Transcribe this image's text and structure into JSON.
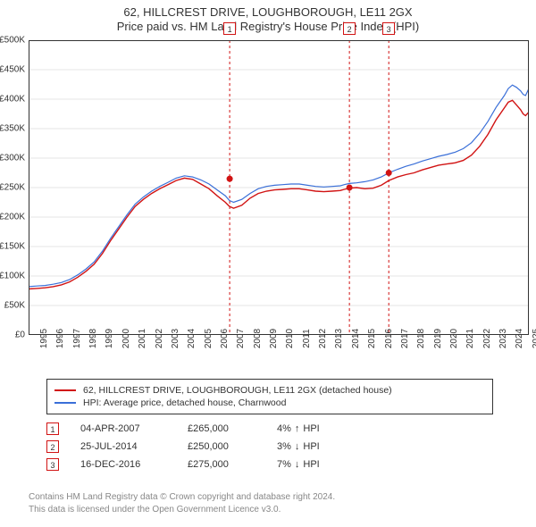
{
  "title_line1": "62, HILLCREST DRIVE, LOUGHBOROUGH, LE11 2GX",
  "title_line2": "Price paid vs. HM Land Registry's House Price Index (HPI)",
  "chart": {
    "type": "line",
    "background_color": "#ffffff",
    "grid_color": "#e6e6e6",
    "border_color": "#333333",
    "xlim": [
      1995,
      2025.5
    ],
    "ylim": [
      0,
      500000
    ],
    "ytick_step": 50000,
    "y_tick_labels": [
      "£0",
      "£50K",
      "£100K",
      "£150K",
      "£200K",
      "£250K",
      "£300K",
      "£350K",
      "£400K",
      "£450K",
      "£500K"
    ],
    "x_tick_labels": [
      "1995",
      "1996",
      "1997",
      "1998",
      "1999",
      "2000",
      "2001",
      "2002",
      "2003",
      "2004",
      "2005",
      "2006",
      "2007",
      "2008",
      "2009",
      "2010",
      "2011",
      "2012",
      "2013",
      "2014",
      "2015",
      "2016",
      "2017",
      "2018",
      "2019",
      "2020",
      "2021",
      "2022",
      "2023",
      "2024",
      "2025"
    ],
    "series": [
      {
        "name": "62, HILLCREST DRIVE, LOUGHBOROUGH, LE11 2GX (detached house)",
        "color": "#d11313",
        "line_width": 1.4,
        "data_y": [
          78000,
          79000,
          80000,
          82000,
          85000,
          90000,
          98000,
          108000,
          120000,
          138000,
          160000,
          180000,
          200000,
          218000,
          230000,
          240000,
          248000,
          255000,
          262000,
          266000,
          264000,
          256000,
          248000,
          236000,
          225000,
          218000,
          215000,
          220000,
          232000,
          240000,
          244000,
          246000,
          247000,
          248000,
          248000,
          246000,
          244000,
          243000,
          244000,
          245000,
          247000,
          249000,
          250000,
          248000,
          249000,
          254000,
          262000,
          268000,
          272000,
          275000,
          280000,
          284000,
          288000,
          290000,
          292000,
          296000,
          305000,
          320000,
          340000,
          365000,
          385000,
          395000,
          398000,
          390000,
          382000,
          375000,
          372000,
          378000
        ]
      },
      {
        "name": "HPI: Average price, detached house, Charnwood",
        "color": "#3a6fd8",
        "line_width": 1.2,
        "data_y": [
          82000,
          83000,
          84000,
          86000,
          89000,
          94000,
          102000,
          112000,
          124000,
          142000,
          164000,
          184000,
          204000,
          222000,
          234000,
          244000,
          252000,
          259000,
          266000,
          270000,
          268000,
          263000,
          256000,
          246000,
          236000,
          228000,
          225000,
          230000,
          240000,
          248000,
          252000,
          254000,
          255000,
          256000,
          256000,
          254000,
          252000,
          251000,
          252000,
          253000,
          255000,
          257000,
          258000,
          260000,
          263000,
          268000,
          275000,
          281000,
          286000,
          290000,
          295000,
          299000,
          303000,
          306000,
          310000,
          316000,
          326000,
          342000,
          362000,
          386000,
          406000,
          418000,
          424000,
          420000,
          414000,
          408000,
          406000,
          418000
        ]
      }
    ],
    "data_x": [
      1995,
      1995.5,
      1996,
      1996.5,
      1997,
      1997.5,
      1998,
      1998.5,
      1999,
      1999.5,
      2000,
      2000.5,
      2001,
      2001.5,
      2002,
      2002.5,
      2003,
      2003.5,
      2004,
      2004.5,
      2005,
      2005.5,
      2006,
      2006.5,
      2007,
      2007.25,
      2007.5,
      2008,
      2008.5,
      2009,
      2009.5,
      2010,
      2010.5,
      2011,
      2011.5,
      2012,
      2012.5,
      2013,
      2013.5,
      2014,
      2014.25,
      2014.56,
      2015,
      2015.5,
      2016,
      2016.5,
      2016.96,
      2017.5,
      2018,
      2018.5,
      2019,
      2019.5,
      2020,
      2020.5,
      2021,
      2021.5,
      2022,
      2022.5,
      2023,
      2023.5,
      2024,
      2024.25,
      2024.5,
      2024.75,
      2025,
      2025.15,
      2025.3,
      2025.5
    ],
    "sale_points": [
      {
        "x": 2007.26,
        "y": 265000,
        "color": "#d11313",
        "radius": 3.5
      },
      {
        "x": 2014.56,
        "y": 250000,
        "color": "#d11313",
        "radius": 3.5
      },
      {
        "x": 2016.96,
        "y": 275000,
        "color": "#d11313",
        "radius": 3.5
      }
    ],
    "marker_lines": [
      {
        "id": "1",
        "x": 2007.26,
        "color": "#d11313",
        "dash": "3,3"
      },
      {
        "id": "2",
        "x": 2014.56,
        "color": "#d11313",
        "dash": "3,3"
      },
      {
        "id": "3",
        "x": 2016.96,
        "color": "#d11313",
        "dash": "3,3"
      }
    ],
    "marker_box_fill": "#ffffff",
    "marker_box_border": "#d11313",
    "marker_box_text_color": "#333333"
  },
  "legend": {
    "items": [
      {
        "label": "62, HILLCREST DRIVE, LOUGHBOROUGH, LE11 2GX (detached house)",
        "color": "#d11313"
      },
      {
        "label": "HPI: Average price, detached house, Charnwood",
        "color": "#3a6fd8"
      }
    ]
  },
  "sales": [
    {
      "id": "1",
      "date": "04-APR-2007",
      "price": "£265,000",
      "delta_pct": "4%",
      "direction": "up",
      "delta_label": "HPI"
    },
    {
      "id": "2",
      "date": "25-JUL-2014",
      "price": "£250,000",
      "delta_pct": "3%",
      "direction": "down",
      "delta_label": "HPI"
    },
    {
      "id": "3",
      "date": "16-DEC-2016",
      "price": "£275,000",
      "delta_pct": "7%",
      "direction": "down",
      "delta_label": "HPI"
    }
  ],
  "arrows": {
    "up": "↑",
    "down": "↓"
  },
  "footer_line1": "Contains HM Land Registry data © Crown copyright and database right 2024.",
  "footer_line2": "This data is licensed under the Open Government Licence v3.0."
}
